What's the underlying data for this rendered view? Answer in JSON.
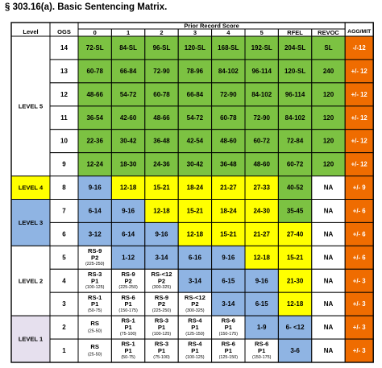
{
  "title": "§ 303.16(a).  Basic Sentencing Matrix.",
  "headers": {
    "level": "Level",
    "ogs": "OGS",
    "prior_record_score": "Prior Record Score",
    "columns": [
      "0",
      "1",
      "2",
      "3",
      "4",
      "5",
      "RFEL",
      "REVOC"
    ],
    "agg_mit": "AGG/MIT"
  },
  "colors": {
    "green": "#7cc242",
    "yellow": "#ffff00",
    "blue": "#8fb4e3",
    "white": "#ffffff",
    "orange": "#ef6c00",
    "level_1": "#e6e0ee",
    "border": "#000000"
  },
  "levels": [
    {
      "name": "LEVEL 5",
      "color": "white",
      "ogs": [
        "14",
        "13",
        "12",
        "11",
        "10",
        "9"
      ]
    },
    {
      "name": "LEVEL 4",
      "color": "yellow",
      "ogs": [
        "8"
      ]
    },
    {
      "name": "LEVEL 3",
      "color": "blue",
      "ogs": [
        "7",
        "6"
      ]
    },
    {
      "name": "LEVEL 2",
      "color": "white",
      "ogs": [
        "5",
        "4",
        "3"
      ]
    },
    {
      "name": "LEVEL 1",
      "color": "level_1",
      "ogs": [
        "2",
        "1"
      ]
    }
  ],
  "rows": [
    {
      "ogs": "14",
      "cells": [
        {
          "color": "green",
          "lines": [
            "72-SL"
          ]
        },
        {
          "color": "green",
          "lines": [
            "84-SL"
          ]
        },
        {
          "color": "green",
          "lines": [
            "96-SL"
          ]
        },
        {
          "color": "green",
          "lines": [
            "120-SL"
          ]
        },
        {
          "color": "green",
          "lines": [
            "168-SL"
          ]
        },
        {
          "color": "green",
          "lines": [
            "192-SL"
          ]
        },
        {
          "color": "green",
          "lines": [
            "204-SL"
          ]
        },
        {
          "color": "green",
          "lines": [
            "SL"
          ]
        }
      ],
      "agg_mit": "-/-12"
    },
    {
      "ogs": "13",
      "cells": [
        {
          "color": "green",
          "lines": [
            "60-78"
          ]
        },
        {
          "color": "green",
          "lines": [
            "66-84"
          ]
        },
        {
          "color": "green",
          "lines": [
            "72-90"
          ]
        },
        {
          "color": "green",
          "lines": [
            "78-96"
          ]
        },
        {
          "color": "green",
          "lines": [
            "84-102"
          ]
        },
        {
          "color": "green",
          "lines": [
            "96-114"
          ]
        },
        {
          "color": "green",
          "lines": [
            "120-SL"
          ]
        },
        {
          "color": "green",
          "lines": [
            "240"
          ]
        }
      ],
      "agg_mit": "+/- 12"
    },
    {
      "ogs": "12",
      "cells": [
        {
          "color": "green",
          "lines": [
            "48-66"
          ]
        },
        {
          "color": "green",
          "lines": [
            "54-72"
          ]
        },
        {
          "color": "green",
          "lines": [
            "60-78"
          ]
        },
        {
          "color": "green",
          "lines": [
            "66-84"
          ]
        },
        {
          "color": "green",
          "lines": [
            "72-90"
          ]
        },
        {
          "color": "green",
          "lines": [
            "84-102"
          ]
        },
        {
          "color": "green",
          "lines": [
            "96-114"
          ]
        },
        {
          "color": "green",
          "lines": [
            "120"
          ]
        }
      ],
      "agg_mit": "+/- 12"
    },
    {
      "ogs": "11",
      "cells": [
        {
          "color": "green",
          "lines": [
            "36-54"
          ]
        },
        {
          "color": "green",
          "lines": [
            "42-60"
          ]
        },
        {
          "color": "green",
          "lines": [
            "48-66"
          ]
        },
        {
          "color": "green",
          "lines": [
            "54-72"
          ]
        },
        {
          "color": "green",
          "lines": [
            "60-78"
          ]
        },
        {
          "color": "green",
          "lines": [
            "72-90"
          ]
        },
        {
          "color": "green",
          "lines": [
            "84-102"
          ]
        },
        {
          "color": "green",
          "lines": [
            "120"
          ]
        }
      ],
      "agg_mit": "+/- 12"
    },
    {
      "ogs": "10",
      "cells": [
        {
          "color": "green",
          "lines": [
            "22-36"
          ]
        },
        {
          "color": "green",
          "lines": [
            "30-42"
          ]
        },
        {
          "color": "green",
          "lines": [
            "36-48"
          ]
        },
        {
          "color": "green",
          "lines": [
            "42-54"
          ]
        },
        {
          "color": "green",
          "lines": [
            "48-60"
          ]
        },
        {
          "color": "green",
          "lines": [
            "60-72"
          ]
        },
        {
          "color": "green",
          "lines": [
            "72-84"
          ]
        },
        {
          "color": "green",
          "lines": [
            "120"
          ]
        }
      ],
      "agg_mit": "+/- 12"
    },
    {
      "ogs": "9",
      "cells": [
        {
          "color": "green",
          "lines": [
            "12-24"
          ]
        },
        {
          "color": "green",
          "lines": [
            "18-30"
          ]
        },
        {
          "color": "green",
          "lines": [
            "24-36"
          ]
        },
        {
          "color": "green",
          "lines": [
            "30-42"
          ]
        },
        {
          "color": "green",
          "lines": [
            "36-48"
          ]
        },
        {
          "color": "green",
          "lines": [
            "48-60"
          ]
        },
        {
          "color": "green",
          "lines": [
            "60-72"
          ]
        },
        {
          "color": "green",
          "lines": [
            "120"
          ]
        }
      ],
      "agg_mit": "+/- 12"
    },
    {
      "ogs": "8",
      "cells": [
        {
          "color": "blue",
          "lines": [
            "9-16"
          ]
        },
        {
          "color": "yellow",
          "lines": [
            "12-18"
          ]
        },
        {
          "color": "yellow",
          "lines": [
            "15-21"
          ]
        },
        {
          "color": "yellow",
          "lines": [
            "18-24"
          ]
        },
        {
          "color": "yellow",
          "lines": [
            "21-27"
          ]
        },
        {
          "color": "yellow",
          "lines": [
            "27-33"
          ]
        },
        {
          "color": "green",
          "lines": [
            "40-52"
          ]
        },
        {
          "color": "white",
          "lines": [
            "NA"
          ]
        }
      ],
      "agg_mit": "+/- 9"
    },
    {
      "ogs": "7",
      "cells": [
        {
          "color": "blue",
          "lines": [
            "6-14"
          ]
        },
        {
          "color": "blue",
          "lines": [
            "9-16"
          ]
        },
        {
          "color": "yellow",
          "lines": [
            "12-18"
          ]
        },
        {
          "color": "yellow",
          "lines": [
            "15-21"
          ]
        },
        {
          "color": "yellow",
          "lines": [
            "18-24"
          ]
        },
        {
          "color": "yellow",
          "lines": [
            "24-30"
          ]
        },
        {
          "color": "green",
          "lines": [
            "35-45"
          ]
        },
        {
          "color": "white",
          "lines": [
            "NA"
          ]
        }
      ],
      "agg_mit": "+/- 6"
    },
    {
      "ogs": "6",
      "cells": [
        {
          "color": "blue",
          "lines": [
            "3-12"
          ]
        },
        {
          "color": "blue",
          "lines": [
            "6-14"
          ]
        },
        {
          "color": "blue",
          "lines": [
            "9-16"
          ]
        },
        {
          "color": "yellow",
          "lines": [
            "12-18"
          ]
        },
        {
          "color": "yellow",
          "lines": [
            "15-21"
          ]
        },
        {
          "color": "yellow",
          "lines": [
            "21-27"
          ]
        },
        {
          "color": "yellow",
          "lines": [
            "27-40"
          ]
        },
        {
          "color": "white",
          "lines": [
            "NA"
          ]
        }
      ],
      "agg_mit": "+/- 6"
    },
    {
      "ogs": "5",
      "cells": [
        {
          "color": "white",
          "lines": [
            "RS-9",
            "P2",
            "(225-250)"
          ]
        },
        {
          "color": "blue",
          "lines": [
            "1-12"
          ]
        },
        {
          "color": "blue",
          "lines": [
            "3-14"
          ]
        },
        {
          "color": "blue",
          "lines": [
            "6-16"
          ]
        },
        {
          "color": "blue",
          "lines": [
            "9-16"
          ]
        },
        {
          "color": "yellow",
          "lines": [
            "12-18"
          ]
        },
        {
          "color": "yellow",
          "lines": [
            "15-21"
          ]
        },
        {
          "color": "white",
          "lines": [
            "NA"
          ]
        }
      ],
      "agg_mit": "+/- 6"
    },
    {
      "ogs": "4",
      "cells": [
        {
          "color": "white",
          "lines": [
            "RS-3",
            "P1",
            "(100-125)"
          ]
        },
        {
          "color": "white",
          "lines": [
            "RS-9",
            "P2",
            "(225-250)"
          ]
        },
        {
          "color": "white",
          "lines": [
            "RS-<12",
            "P2",
            "(300-325)"
          ]
        },
        {
          "color": "blue",
          "lines": [
            "3-14"
          ]
        },
        {
          "color": "blue",
          "lines": [
            "6-15"
          ]
        },
        {
          "color": "blue",
          "lines": [
            "9-16"
          ]
        },
        {
          "color": "yellow",
          "lines": [
            "21-30"
          ]
        },
        {
          "color": "white",
          "lines": [
            "NA"
          ]
        }
      ],
      "agg_mit": "+/- 3"
    },
    {
      "ogs": "3",
      "cells": [
        {
          "color": "white",
          "lines": [
            "RS-1",
            "P1",
            "(50-75)"
          ]
        },
        {
          "color": "white",
          "lines": [
            "RS-6",
            "P1",
            "(150-175)"
          ]
        },
        {
          "color": "white",
          "lines": [
            "RS-9",
            "P2",
            "(225-250)"
          ]
        },
        {
          "color": "white",
          "lines": [
            "RS-<12",
            "P2",
            "(300-325)"
          ]
        },
        {
          "color": "blue",
          "lines": [
            "3-14"
          ]
        },
        {
          "color": "blue",
          "lines": [
            "6-15"
          ]
        },
        {
          "color": "yellow",
          "lines": [
            "12-18"
          ]
        },
        {
          "color": "white",
          "lines": [
            "NA"
          ]
        }
      ],
      "agg_mit": "+/- 3"
    },
    {
      "ogs": "2",
      "cells": [
        {
          "color": "white",
          "lines": [
            "RS",
            "(25-50)"
          ]
        },
        {
          "color": "white",
          "lines": [
            "RS-1",
            "P1",
            "(75-100)"
          ]
        },
        {
          "color": "white",
          "lines": [
            "RS-3",
            "P1",
            "(100-125)"
          ]
        },
        {
          "color": "white",
          "lines": [
            "RS-4",
            "P1",
            "(125-150)"
          ]
        },
        {
          "color": "white",
          "lines": [
            "RS-6",
            "P1",
            "(150-175)"
          ]
        },
        {
          "color": "blue",
          "lines": [
            "1-9"
          ]
        },
        {
          "color": "blue",
          "lines": [
            "6- <12"
          ]
        },
        {
          "color": "white",
          "lines": [
            "NA"
          ]
        }
      ],
      "agg_mit": "+/- 3"
    },
    {
      "ogs": "1",
      "cells": [
        {
          "color": "white",
          "lines": [
            "RS",
            "(25-50)"
          ]
        },
        {
          "color": "white",
          "lines": [
            "RS-1",
            "P1",
            "(50-75)"
          ]
        },
        {
          "color": "white",
          "lines": [
            "RS-3",
            "P1",
            "(75-100)"
          ]
        },
        {
          "color": "white",
          "lines": [
            "RS-4",
            "P1",
            "(100-125)"
          ]
        },
        {
          "color": "white",
          "lines": [
            "RS-6",
            "P1",
            "(125-150)"
          ]
        },
        {
          "color": "white",
          "lines": [
            "RS-6",
            "P1",
            "(150-175)"
          ]
        },
        {
          "color": "blue",
          "lines": [
            "3-6"
          ]
        },
        {
          "color": "white",
          "lines": [
            "NA"
          ]
        }
      ],
      "agg_mit": "+/- 3"
    }
  ]
}
